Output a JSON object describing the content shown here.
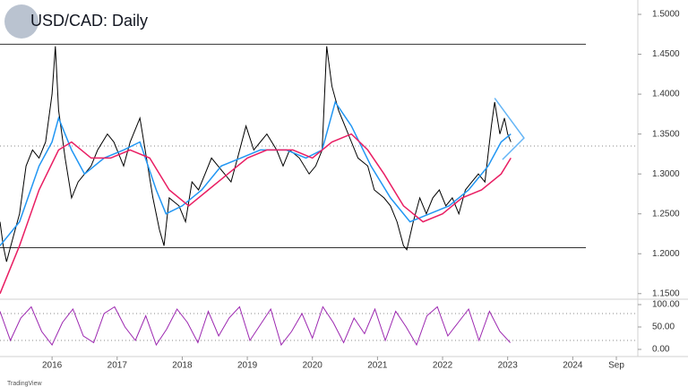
{
  "watermark": "TradingView",
  "chart_data": [
    {
      "type": "line",
      "title": "USD/CAD: Daily",
      "xlim": [
        2015.2,
        2025.0
      ],
      "ylim": [
        1.143,
        1.518
      ],
      "yticks": [
        {
          "value": 1.15,
          "label": "1.1500"
        },
        {
          "value": 1.2,
          "label": "1.2000"
        },
        {
          "value": 1.25,
          "label": "1.2500"
        },
        {
          "value": 1.3,
          "label": "1.3000"
        },
        {
          "value": 1.35,
          "label": "1.3500"
        },
        {
          "value": 1.4,
          "label": "1.4000"
        },
        {
          "value": 1.45,
          "label": "1.4500"
        },
        {
          "value": 1.5,
          "label": "1.5000"
        }
      ],
      "levels": [
        1.4625,
        1.2075
      ],
      "level_color": "#333333",
      "dotted_levels": [
        1.335
      ],
      "series": [
        {
          "color": "#000000",
          "x": [
            2015.2,
            2015.25,
            2015.3,
            2015.4,
            2015.5,
            2015.6,
            2015.7,
            2015.8,
            2015.9,
            2016.0,
            2016.05,
            2016.1,
            2016.2,
            2016.3,
            2016.4,
            2016.5,
            2016.6,
            2016.7,
            2016.85,
            2016.95,
            2017.1,
            2017.2,
            2017.35,
            2017.45,
            2017.55,
            2017.65,
            2017.72,
            2017.8,
            2017.95,
            2018.05,
            2018.15,
            2018.25,
            2018.35,
            2018.45,
            2018.55,
            2018.65,
            2018.75,
            2018.85,
            2018.98,
            2019.1,
            2019.2,
            2019.3,
            2019.45,
            2019.55,
            2019.65,
            2019.8,
            2019.95,
            2020.05,
            2020.15,
            2020.22,
            2020.3,
            2020.4,
            2020.5,
            2020.6,
            2020.7,
            2020.85,
            2020.95,
            2021.1,
            2021.2,
            2021.3,
            2021.4,
            2021.45,
            2021.55,
            2021.65,
            2021.75,
            2021.85,
            2021.95,
            2022.05,
            2022.15,
            2022.25,
            2022.35,
            2022.45,
            2022.55,
            2022.65,
            2022.75,
            2022.8,
            2022.88,
            2022.95,
            2023.0,
            2023.05
          ],
          "values": [
            1.24,
            1.21,
            1.19,
            1.22,
            1.25,
            1.31,
            1.33,
            1.32,
            1.34,
            1.4,
            1.46,
            1.38,
            1.32,
            1.27,
            1.29,
            1.3,
            1.31,
            1.33,
            1.35,
            1.34,
            1.31,
            1.34,
            1.37,
            1.32,
            1.27,
            1.23,
            1.21,
            1.27,
            1.26,
            1.24,
            1.29,
            1.28,
            1.3,
            1.32,
            1.31,
            1.3,
            1.29,
            1.32,
            1.36,
            1.33,
            1.34,
            1.35,
            1.33,
            1.31,
            1.33,
            1.32,
            1.3,
            1.31,
            1.33,
            1.46,
            1.41,
            1.38,
            1.36,
            1.34,
            1.32,
            1.31,
            1.28,
            1.27,
            1.26,
            1.24,
            1.21,
            1.205,
            1.24,
            1.27,
            1.25,
            1.27,
            1.28,
            1.26,
            1.27,
            1.25,
            1.28,
            1.29,
            1.3,
            1.29,
            1.36,
            1.39,
            1.35,
            1.37,
            1.35,
            1.34
          ]
        },
        {
          "color": "#2196f3",
          "x": [
            2015.2,
            2015.5,
            2015.8,
            2016.0,
            2016.1,
            2016.3,
            2016.5,
            2016.8,
            2017.1,
            2017.35,
            2017.6,
            2017.75,
            2018.0,
            2018.3,
            2018.6,
            2018.9,
            2019.2,
            2019.6,
            2019.9,
            2020.15,
            2020.35,
            2020.6,
            2020.9,
            2021.2,
            2021.5,
            2021.8,
            2022.1,
            2022.4,
            2022.7,
            2022.9,
            2023.05
          ],
          "values": [
            1.21,
            1.24,
            1.31,
            1.34,
            1.37,
            1.33,
            1.3,
            1.32,
            1.33,
            1.34,
            1.28,
            1.25,
            1.26,
            1.28,
            1.31,
            1.32,
            1.33,
            1.33,
            1.32,
            1.33,
            1.39,
            1.36,
            1.31,
            1.27,
            1.24,
            1.25,
            1.26,
            1.28,
            1.31,
            1.34,
            1.35
          ]
        },
        {
          "color": "#e91e63",
          "x": [
            2015.2,
            2015.5,
            2015.8,
            2016.1,
            2016.3,
            2016.6,
            2016.9,
            2017.2,
            2017.5,
            2017.8,
            2018.1,
            2018.4,
            2018.7,
            2019.0,
            2019.3,
            2019.7,
            2020.0,
            2020.3,
            2020.6,
            2020.85,
            2021.1,
            2021.4,
            2021.7,
            2022.0,
            2022.3,
            2022.6,
            2022.9,
            2023.05
          ],
          "values": [
            1.15,
            1.21,
            1.28,
            1.33,
            1.34,
            1.32,
            1.32,
            1.33,
            1.32,
            1.28,
            1.26,
            1.28,
            1.3,
            1.32,
            1.33,
            1.33,
            1.32,
            1.34,
            1.35,
            1.33,
            1.3,
            1.26,
            1.24,
            1.25,
            1.27,
            1.28,
            1.3,
            1.32
          ]
        },
        {
          "color": "#64b5f6",
          "x": [
            2022.8,
            2023.25,
            2022.92
          ],
          "values": [
            1.395,
            1.345,
            1.318
          ]
        }
      ]
    },
    {
      "type": "line",
      "xlim": [
        2015.2,
        2025.0
      ],
      "ylim": [
        -16,
        110
      ],
      "yticks": [
        {
          "value": 0,
          "label": "0.00"
        },
        {
          "value": 50,
          "label": "50.00"
        },
        {
          "value": 100,
          "label": "100.00"
        }
      ],
      "dotted_levels": [
        80,
        20
      ],
      "xticks": [
        2016,
        2017,
        2018,
        2019,
        2020,
        2021,
        2022,
        2023,
        2024,
        {
          "value": 2024.67,
          "label": "Sep"
        }
      ],
      "series": [
        {
          "color": "#9c27b0",
          "x": [
            2015.2,
            2015.36,
            2015.52,
            2015.68,
            2015.84,
            2016,
            2016.16,
            2016.32,
            2016.48,
            2016.64,
            2016.8,
            2016.96,
            2017.12,
            2017.28,
            2017.44,
            2017.6,
            2017.76,
            2017.92,
            2018.08,
            2018.24,
            2018.4,
            2018.56,
            2018.72,
            2018.88,
            2019.04,
            2019.2,
            2019.36,
            2019.52,
            2019.68,
            2019.84,
            2020,
            2020.16,
            2020.32,
            2020.48,
            2020.64,
            2020.8,
            2020.96,
            2021.12,
            2021.28,
            2021.44,
            2021.6,
            2021.76,
            2021.92,
            2022.08,
            2022.24,
            2022.4,
            2022.56,
            2022.72,
            2022.88,
            2023.04
          ],
          "values": [
            85,
            20,
            70,
            95,
            40,
            10,
            60,
            90,
            30,
            15,
            80,
            95,
            50,
            20,
            75,
            10,
            45,
            90,
            60,
            15,
            85,
            30,
            70,
            95,
            20,
            55,
            90,
            10,
            40,
            80,
            25,
            95,
            60,
            15,
            70,
            35,
            90,
            20,
            85,
            50,
            10,
            75,
            95,
            30,
            60,
            90,
            20,
            85,
            40,
            15
          ]
        }
      ]
    }
  ]
}
